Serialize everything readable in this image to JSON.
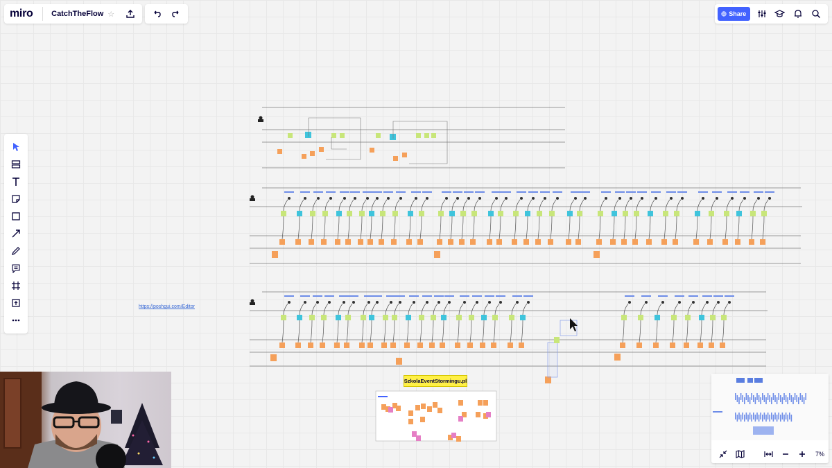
{
  "app": {
    "logo": "miro",
    "board_name": "CatchTheFlow"
  },
  "toolbar": {
    "star_icon": "star-icon",
    "export_icon": "upload-icon",
    "undo_icon": "undo-icon",
    "redo_icon": "redo-icon",
    "share_label": "Share",
    "right_icons": [
      "settings-sliders-icon",
      "graduation-cap-icon",
      "bell-icon",
      "search-icon"
    ]
  },
  "left_tools": [
    "select",
    "templates",
    "text",
    "sticky-note",
    "shape",
    "arrow",
    "pen",
    "comment",
    "frame",
    "upload",
    "more"
  ],
  "canvas": {
    "link_text": "https://poshgui.com/Editor",
    "school_label": "SzkolaEventStormingu.pl"
  },
  "colors": {
    "accent": "#4262ff",
    "sticky_green": "#c8e67a",
    "sticky_blue": "#3fc4dc",
    "sticky_orange": "#f5a05a",
    "sticky_pink": "#e57fc5",
    "sticky_yellow": "#fff046"
  },
  "minimap": {
    "zoom": "7%"
  }
}
